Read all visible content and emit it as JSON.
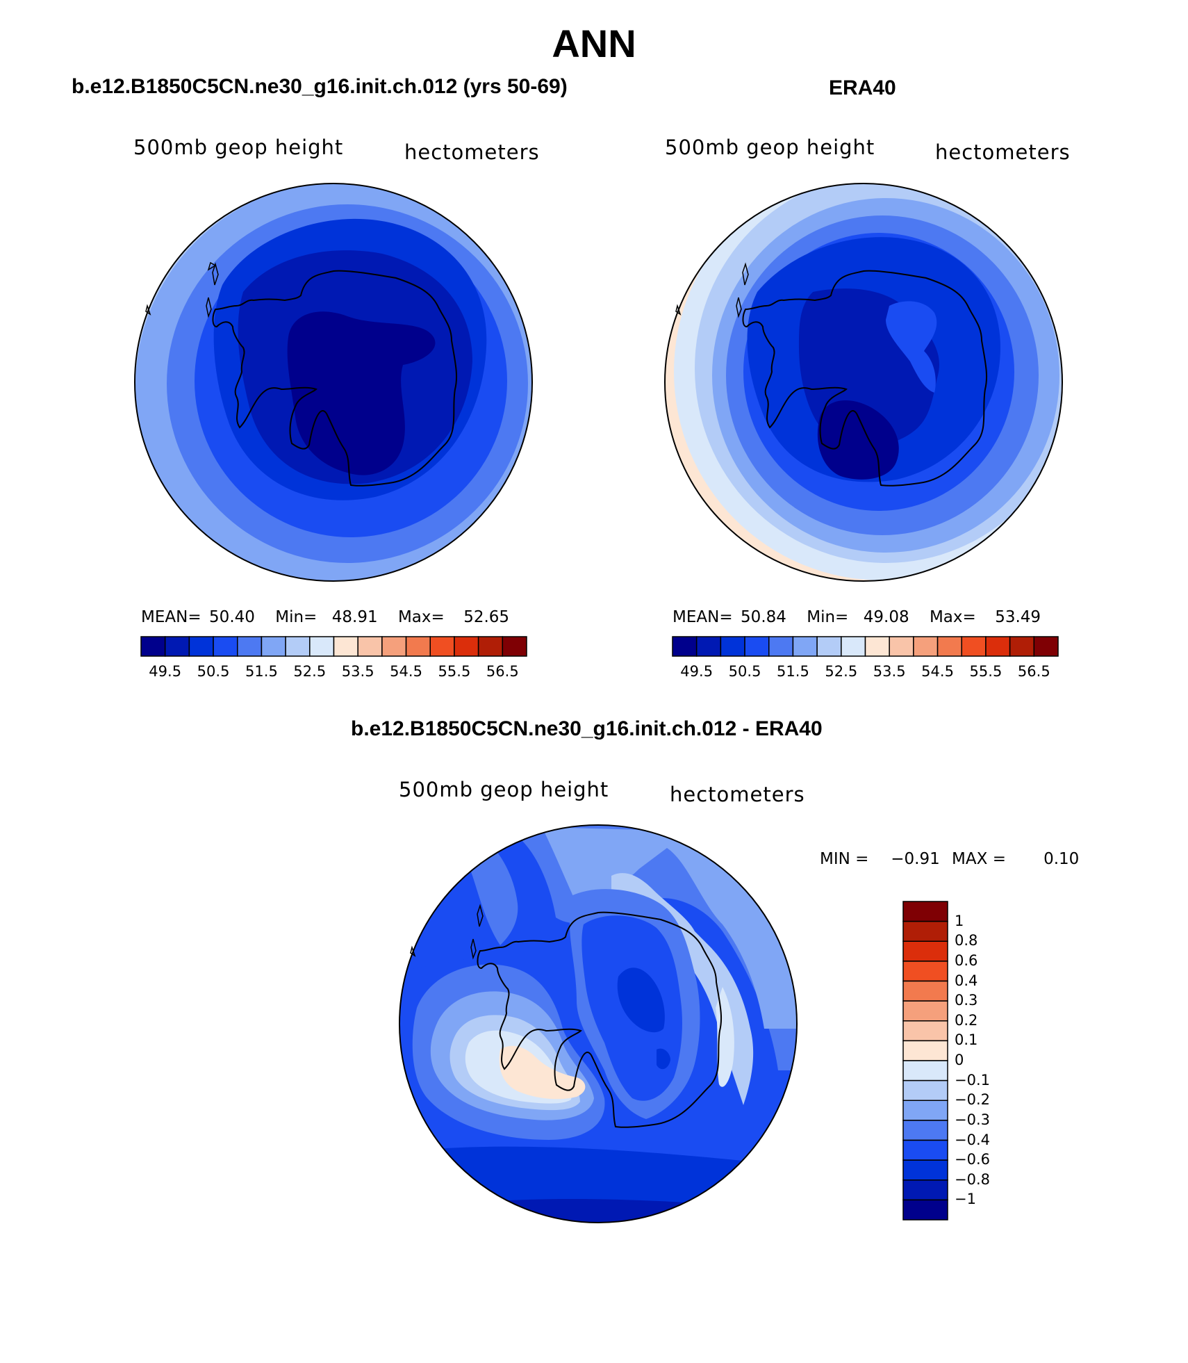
{
  "title": "ANN",
  "panels": [
    {
      "id": "model",
      "case_title": "b.e12.B1850C5CN.ne30_g16.init.ch.012 (yrs 50-69)",
      "variable": "500mb geop height",
      "units": "hectometers",
      "stats": {
        "mean_label": "MEAN=",
        "mean": "50.40",
        "min_label": "Min=",
        "min": "48.91",
        "max_label": "Max=",
        "max": "52.65"
      },
      "colorbar_ticks": [
        "49.5",
        "50.5",
        "51.5",
        "52.5",
        "53.5",
        "54.5",
        "55.5",
        "56.5"
      ],
      "colorbar_colors": [
        "#00008c",
        "#0019b3",
        "#0033d9",
        "#1a4cf2",
        "#4d79f2",
        "#80a6f5",
        "#b3ccf7",
        "#d9e8fa",
        "#fde6d4",
        "#f9c4a9",
        "#f5a07c",
        "#f27a4e",
        "#f04f22",
        "#db2e0b",
        "#b01e06",
        "#7f0004"
      ]
    },
    {
      "id": "obs",
      "case_title": "ERA40",
      "variable": "500mb geop height",
      "units": "hectometers",
      "stats": {
        "mean_label": "MEAN=",
        "mean": "50.84",
        "min_label": "Min=",
        "min": "49.08",
        "max_label": "Max=",
        "max": "53.49"
      },
      "colorbar_ticks": [
        "49.5",
        "50.5",
        "51.5",
        "52.5",
        "53.5",
        "54.5",
        "55.5",
        "56.5"
      ],
      "colorbar_colors": [
        "#00008c",
        "#0019b3",
        "#0033d9",
        "#1a4cf2",
        "#4d79f2",
        "#80a6f5",
        "#b3ccf7",
        "#d9e8fa",
        "#fde6d4",
        "#f9c4a9",
        "#f5a07c",
        "#f27a4e",
        "#f04f22",
        "#db2e0b",
        "#b01e06",
        "#7f0004"
      ]
    },
    {
      "id": "diff",
      "case_title": "b.e12.B1850C5CN.ne30_g16.init.ch.012 - ERA40",
      "variable": "500mb geop height",
      "units": "hectometers",
      "stats": {
        "min_label": "MIN =",
        "min": "−0.91",
        "max_label": "MAX =",
        "max": "0.10"
      },
      "colorbar_ticks": [
        "1",
        "0.8",
        "0.6",
        "0.4",
        "0.3",
        "0.2",
        "0.1",
        "0",
        "−0.1",
        "−0.2",
        "−0.3",
        "−0.4",
        "−0.6",
        "−0.8",
        "−1"
      ],
      "colorbar_colors": [
        "#7f0004",
        "#b01e06",
        "#db2e0b",
        "#f04f22",
        "#f27a4e",
        "#f5a07c",
        "#f9c4a9",
        "#fde6d4",
        "#d9e8fa",
        "#b3ccf7",
        "#80a6f5",
        "#4d79f2",
        "#1a4cf2",
        "#0033d9",
        "#0019b3",
        "#00008c"
      ]
    }
  ],
  "colors": {
    "outline": "#000000",
    "coast": "#000000"
  }
}
